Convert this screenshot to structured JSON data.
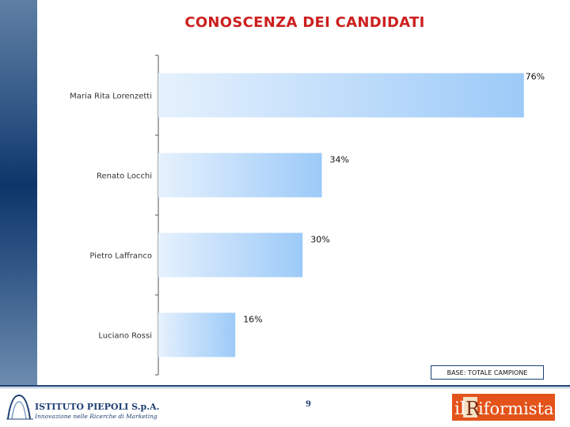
{
  "chart_data": {
    "type": "bar",
    "orientation": "horizontal",
    "title": "CONOSCENZA DEI CANDIDATI",
    "categories": [
      "Maria Rita Lorenzetti",
      "Renato Locchi",
      "Pietro Laffranco",
      "Luciano Rossi"
    ],
    "values": [
      76,
      34,
      30,
      16
    ],
    "value_labels": [
      "76%",
      "34%",
      "30%",
      "16%"
    ],
    "xlim": [
      0,
      80
    ],
    "grid": false,
    "legend": "none",
    "bar_color_start": "#e6f1fd",
    "bar_color_end": "#9ccaf8"
  },
  "base_note": "BASE: TOTALE CAMPIONE",
  "page_number": "9",
  "logos": {
    "left_name": "ISTITUTO PIEPOLI S.p.A.",
    "left_tagline": "Innovazione nelle Ricerche di Marketing",
    "right_name": "il Riformista"
  },
  "colors": {
    "title": "#cc1f1f",
    "band": "#0e3569",
    "footer_rule": "#1f3f73"
  }
}
